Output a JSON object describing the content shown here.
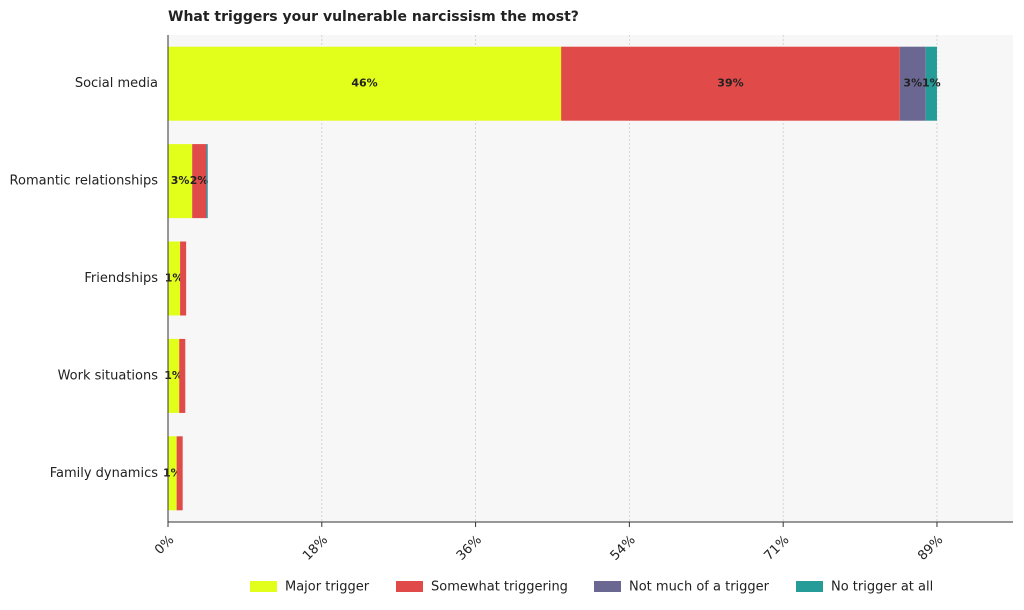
{
  "chart_data": {
    "type": "stacked-barh",
    "title": "What triggers your vulnerable narcissism the most?",
    "categories": [
      "Social media",
      "Romantic relationships",
      "Friendships",
      "Work situations",
      "Family dynamics"
    ],
    "series": [
      {
        "name": "Major trigger",
        "color": "#e2ff1c",
        "values": [
          45.5,
          2.8,
          1.4,
          1.3,
          1.0
        ],
        "value_labels": [
          "46%",
          "3%",
          "1%",
          "1%",
          "1%"
        ]
      },
      {
        "name": "Somewhat triggering",
        "color": "#e04a48",
        "values": [
          39.2,
          1.6,
          0.7,
          0.7,
          0.7
        ],
        "value_labels": [
          "39%",
          "2%",
          null,
          null,
          null
        ]
      },
      {
        "name": "Not much of a trigger",
        "color": "#6a6892",
        "values": [
          3.0,
          0.1,
          0.0,
          0.0,
          0.0
        ],
        "value_labels": [
          "3%",
          null,
          null,
          null,
          null
        ]
      },
      {
        "name": "No trigger at all",
        "color": "#269c98",
        "values": [
          1.3,
          0.1,
          0.0,
          0.0,
          0.0
        ],
        "value_labels": [
          "1%",
          null,
          null,
          null,
          null
        ]
      }
    ],
    "xlim": [
      0,
      97.8
    ],
    "xticks": [
      {
        "value": 0,
        "label": "0%"
      },
      {
        "value": 17.8,
        "label": "18%"
      },
      {
        "value": 35.6,
        "label": "36%"
      },
      {
        "value": 53.4,
        "label": "54%"
      },
      {
        "value": 71.2,
        "label": "71%"
      },
      {
        "value": 89,
        "label": "89%"
      }
    ],
    "grid": true,
    "legend": "bottom"
  }
}
